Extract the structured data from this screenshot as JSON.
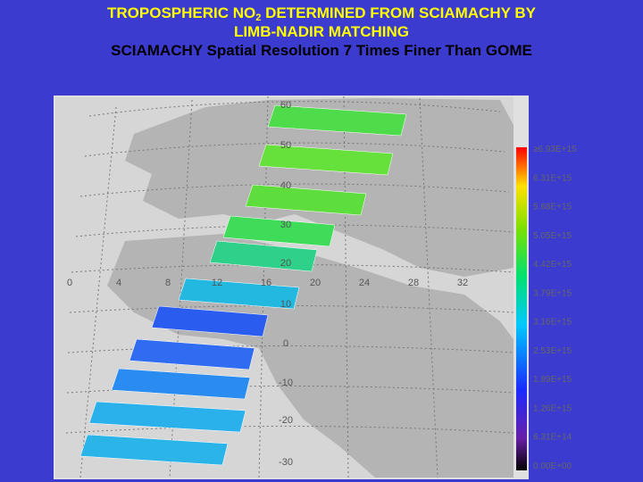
{
  "header": {
    "title_parts": [
      "TROPOSPHERIC NO",
      "2",
      "DETERMINED FROM SCIAMACHY BY"
    ],
    "line2": "LIMB-NADIR MATCHING",
    "line3": "SCIAMACHY Spatial Resolution 7 Times Finer Than GOME"
  },
  "map": {
    "lat_labels": [
      "60",
      "50",
      "40",
      "30",
      "20",
      "10",
      "0",
      "-10",
      "-20",
      "-30"
    ],
    "lon_labels": [
      "0",
      "4",
      "8",
      "12",
      "16",
      "20",
      "24",
      "28",
      "32"
    ]
  },
  "colorbar": {
    "labels": [
      "≥6.93E+15",
      "6.31E+15",
      "5.68E+15",
      "5.05E+15",
      "4.42E+15",
      "3.79E+15",
      "3.16E+15",
      "2.53E+15",
      "1.89E+15",
      "1.26E+15",
      "6.31E+14",
      "0.00E+00"
    ]
  }
}
